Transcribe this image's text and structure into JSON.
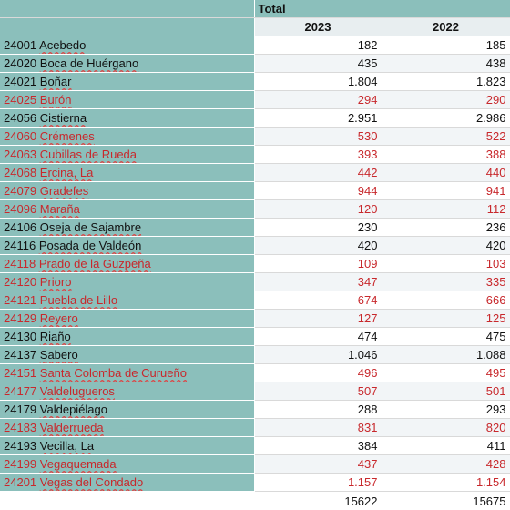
{
  "header": {
    "total_label": "Total",
    "years": [
      "2023",
      "2022"
    ]
  },
  "rows": [
    {
      "code": "24001",
      "name": "Acebedo",
      "v2023": "182",
      "v2022": "185",
      "highlight": false
    },
    {
      "code": "24020",
      "name": "Boca de Huérgano",
      "v2023": "435",
      "v2022": "438",
      "highlight": false
    },
    {
      "code": "24021",
      "name": "Boñar",
      "v2023": "1.804",
      "v2022": "1.823",
      "highlight": false
    },
    {
      "code": "24025",
      "name": "Burón",
      "v2023": "294",
      "v2022": "290",
      "highlight": true
    },
    {
      "code": "24056",
      "name": "Cistierna",
      "v2023": "2.951",
      "v2022": "2.986",
      "highlight": false
    },
    {
      "code": "24060",
      "name": "Crémenes",
      "v2023": "530",
      "v2022": "522",
      "highlight": true
    },
    {
      "code": "24063",
      "name": "Cubillas de Rueda",
      "v2023": "393",
      "v2022": "388",
      "highlight": true
    },
    {
      "code": "24068",
      "name": "Ercina, La",
      "v2023": "442",
      "v2022": "440",
      "highlight": true
    },
    {
      "code": "24079",
      "name": "Gradefes",
      "v2023": "944",
      "v2022": "941",
      "highlight": true
    },
    {
      "code": "24096",
      "name": "Maraña",
      "v2023": "120",
      "v2022": "112",
      "highlight": true
    },
    {
      "code": "24106",
      "name": "Oseja de Sajambre",
      "v2023": "230",
      "v2022": "236",
      "highlight": false
    },
    {
      "code": "24116",
      "name": "Posada de Valdeón",
      "v2023": "420",
      "v2022": "420",
      "highlight": false
    },
    {
      "code": "24118",
      "name": "Prado de la Guzpeña",
      "v2023": "109",
      "v2022": "103",
      "highlight": true
    },
    {
      "code": "24120",
      "name": "Prioro",
      "v2023": "347",
      "v2022": "335",
      "highlight": true
    },
    {
      "code": "24121",
      "name": "Puebla de Lillo",
      "v2023": "674",
      "v2022": "666",
      "highlight": true
    },
    {
      "code": "24129",
      "name": "Reyero",
      "v2023": "127",
      "v2022": "125",
      "highlight": true
    },
    {
      "code": "24130",
      "name": "Riaño",
      "v2023": "474",
      "v2022": "475",
      "highlight": false
    },
    {
      "code": "24137",
      "name": "Sabero",
      "v2023": "1.046",
      "v2022": "1.088",
      "highlight": false
    },
    {
      "code": "24151",
      "name": "Santa Colomba de Curueño",
      "v2023": "496",
      "v2022": "495",
      "highlight": true
    },
    {
      "code": "24177",
      "name": "Valdelugueros",
      "v2023": "507",
      "v2022": "501",
      "highlight": true
    },
    {
      "code": "24179",
      "name": "Valdepiélago",
      "v2023": "288",
      "v2022": "293",
      "highlight": false
    },
    {
      "code": "24183",
      "name": "Valderrueda",
      "v2023": "831",
      "v2022": "820",
      "highlight": true
    },
    {
      "code": "24193",
      "name": "Vecilla, La",
      "v2023": "384",
      "v2022": "411",
      "highlight": false
    },
    {
      "code": "24199",
      "name": "Vegaquemada",
      "v2023": "437",
      "v2022": "428",
      "highlight": true
    },
    {
      "code": "24201",
      "name": "Vegas del Condado",
      "v2023": "1.157",
      "v2022": "1.154",
      "highlight": true
    }
  ],
  "totals": {
    "v2023": "15622",
    "v2022": "15675"
  },
  "colors": {
    "row_header_bg": "#8bbfbb",
    "highlight_text": "#c8282c",
    "normal_text": "#111111"
  }
}
